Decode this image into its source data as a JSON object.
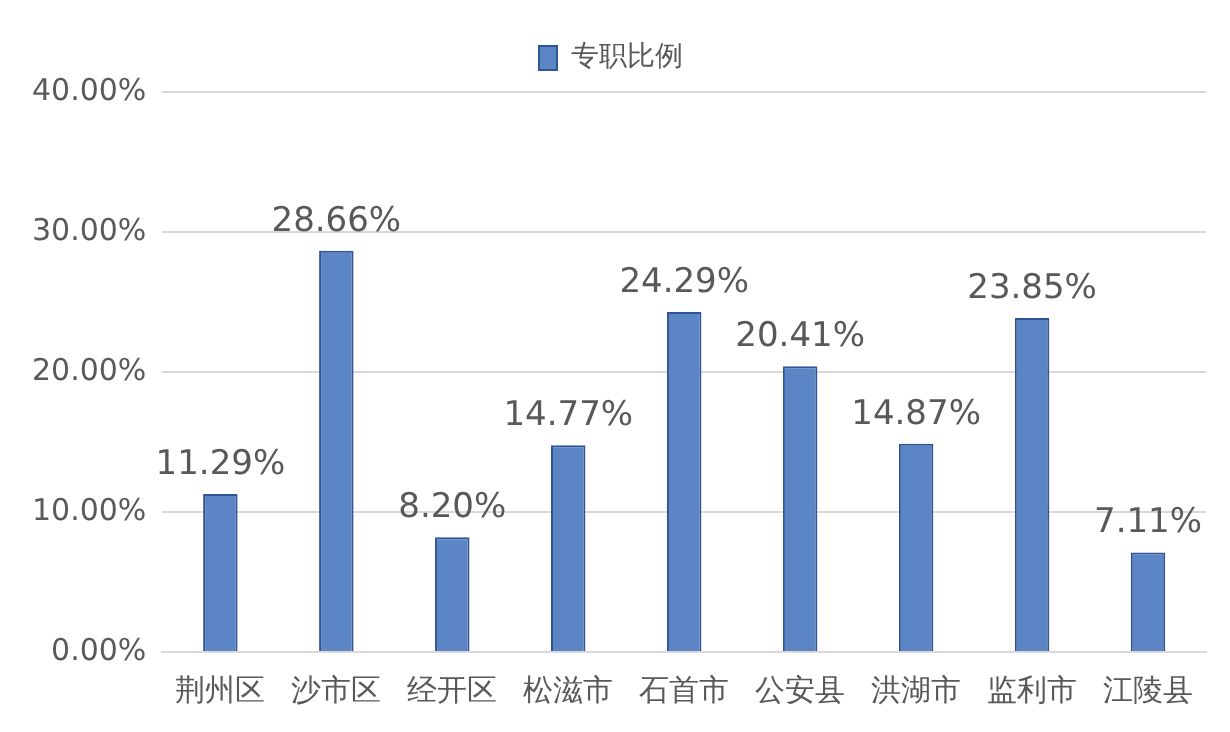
{
  "chart_data": {
    "type": "bar",
    "categories": [
      "荆州区",
      "沙市区",
      "经开区",
      "松滋市",
      "石首市",
      "公安县",
      "洪湖市",
      "监利市",
      "江陵县"
    ],
    "series": [
      {
        "name": "专职比例",
        "color": "#5b85c4",
        "values": [
          11.29,
          28.66,
          8.2,
          14.77,
          24.29,
          20.41,
          14.87,
          23.85,
          7.11
        ],
        "value_labels": [
          "11.29%",
          "28.66%",
          "8.20%",
          "14.77%",
          "24.29%",
          "20.41%",
          "14.87%",
          "23.85%",
          "7.11%"
        ]
      }
    ],
    "ylim": [
      0,
      40
    ],
    "yticks": [
      {
        "value": 0,
        "label": "0.00%"
      },
      {
        "value": 10,
        "label": "10.00%"
      },
      {
        "value": 20,
        "label": "20.00%"
      },
      {
        "value": 30,
        "label": "30.00%"
      },
      {
        "value": 40,
        "label": "40.00%"
      }
    ],
    "grid": "y",
    "legend": "top"
  }
}
